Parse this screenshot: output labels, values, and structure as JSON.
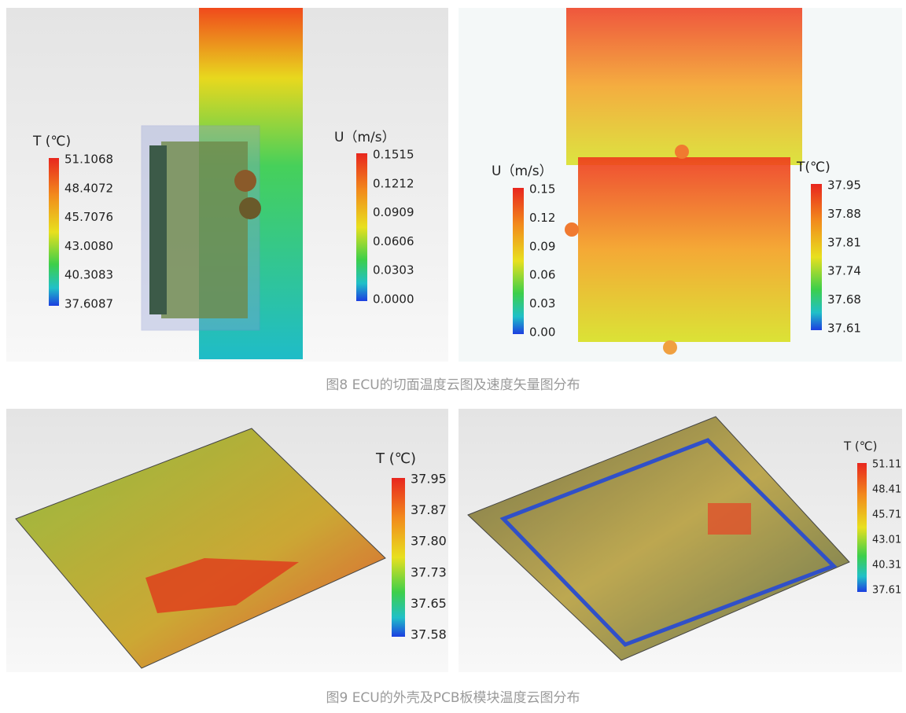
{
  "figure8": {
    "caption": "图8 ECU的切面温度云图及速度矢量图分布",
    "panels": [
      {
        "legends": [
          {
            "title": "T (℃)",
            "labels": [
              "51.1068",
              "48.4072",
              "45.7076",
              "43.0080",
              "40.3083",
              "37.6087"
            ]
          },
          {
            "title": "U（m/s）",
            "labels": [
              "0.1515",
              "0.1212",
              "0.0909",
              "0.0606",
              "0.0303",
              "0.0000"
            ]
          }
        ]
      },
      {
        "legends": [
          {
            "title": "U（m/s）",
            "labels": [
              "0.15",
              "0.12",
              "0.09",
              "0.06",
              "0.03",
              "0.00"
            ]
          },
          {
            "title": "T(℃)",
            "labels": [
              "37.95",
              "37.88",
              "37.81",
              "37.74",
              "37.68",
              "37.61"
            ]
          }
        ]
      }
    ]
  },
  "figure9": {
    "caption": "图9 ECU的外壳及PCB板模块温度云图分布",
    "panels": [
      {
        "legends": [
          {
            "title": "T (℃)",
            "labels": [
              "37.95",
              "37.87",
              "37.80",
              "37.73",
              "37.65",
              "37.58"
            ]
          }
        ]
      },
      {
        "legends": [
          {
            "title": "T (℃)",
            "labels": [
              "51.11",
              "48.41",
              "45.71",
              "43.01",
              "40.31",
              "37.61"
            ]
          }
        ]
      }
    ]
  }
}
